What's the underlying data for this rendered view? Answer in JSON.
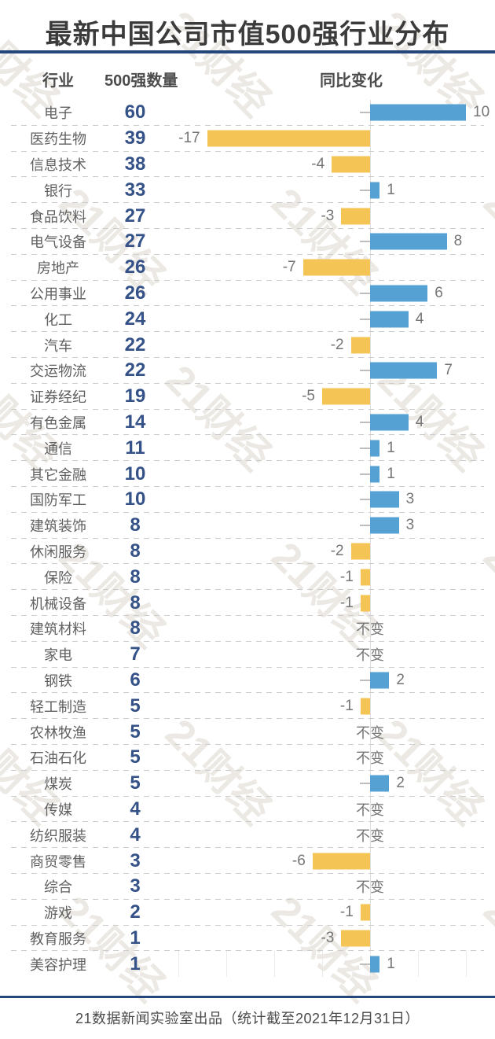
{
  "title": "最新中国公司市值500强行业分布",
  "columns": {
    "industry": "行业",
    "count": "500强数量",
    "change": "同比变化"
  },
  "footer": "21数据新闻实验室出品（统计截至2021年12月31日）",
  "watermark": "21财经",
  "colors": {
    "positive_bar": "#55a1d4",
    "negative_bar": "#f4c454",
    "count_text": "#345288",
    "rule": "#24467b",
    "title_text": "#3b3b3b"
  },
  "chart_data": {
    "type": "bar",
    "orientation": "horizontal",
    "title": "最新中国公司市值500强行业分布",
    "legend": "none",
    "value_label_zero": "不变",
    "xlim": [
      -25,
      10
    ],
    "axis_tick_values": [
      -25,
      -20,
      -15,
      -10,
      -5,
      0,
      5,
      10
    ],
    "rows": [
      {
        "industry": "电子",
        "count": 60,
        "change": 10
      },
      {
        "industry": "医药生物",
        "count": 39,
        "change": -17
      },
      {
        "industry": "信息技术",
        "count": 38,
        "change": -4
      },
      {
        "industry": "银行",
        "count": 33,
        "change": 1
      },
      {
        "industry": "食品饮料",
        "count": 27,
        "change": -3
      },
      {
        "industry": "电气设备",
        "count": 27,
        "change": 8
      },
      {
        "industry": "房地产",
        "count": 26,
        "change": -7
      },
      {
        "industry": "公用事业",
        "count": 26,
        "change": 6
      },
      {
        "industry": "化工",
        "count": 24,
        "change": 4
      },
      {
        "industry": "汽车",
        "count": 22,
        "change": -2
      },
      {
        "industry": "交运物流",
        "count": 22,
        "change": 7
      },
      {
        "industry": "证券经纪",
        "count": 19,
        "change": -5
      },
      {
        "industry": "有色金属",
        "count": 14,
        "change": 4
      },
      {
        "industry": "通信",
        "count": 11,
        "change": 1
      },
      {
        "industry": "其它金融",
        "count": 10,
        "change": 1
      },
      {
        "industry": "国防军工",
        "count": 10,
        "change": 3
      },
      {
        "industry": "建筑装饰",
        "count": 8,
        "change": 3
      },
      {
        "industry": "休闲服务",
        "count": 8,
        "change": -2
      },
      {
        "industry": "保险",
        "count": 8,
        "change": -1
      },
      {
        "industry": "机械设备",
        "count": 8,
        "change": -1
      },
      {
        "industry": "建筑材料",
        "count": 8,
        "change": 0
      },
      {
        "industry": "家电",
        "count": 7,
        "change": 0
      },
      {
        "industry": "钢铁",
        "count": 6,
        "change": 2
      },
      {
        "industry": "轻工制造",
        "count": 5,
        "change": -1
      },
      {
        "industry": "农林牧渔",
        "count": 5,
        "change": 0
      },
      {
        "industry": "石油石化",
        "count": 5,
        "change": 0
      },
      {
        "industry": "煤炭",
        "count": 5,
        "change": 2
      },
      {
        "industry": "传媒",
        "count": 4,
        "change": 0
      },
      {
        "industry": "纺织服装",
        "count": 4,
        "change": 0
      },
      {
        "industry": "商贸零售",
        "count": 3,
        "change": -6
      },
      {
        "industry": "综合",
        "count": 3,
        "change": 0
      },
      {
        "industry": "游戏",
        "count": 2,
        "change": -1
      },
      {
        "industry": "教育服务",
        "count": 1,
        "change": -3
      },
      {
        "industry": "美容护理",
        "count": 1,
        "change": 1
      }
    ]
  }
}
